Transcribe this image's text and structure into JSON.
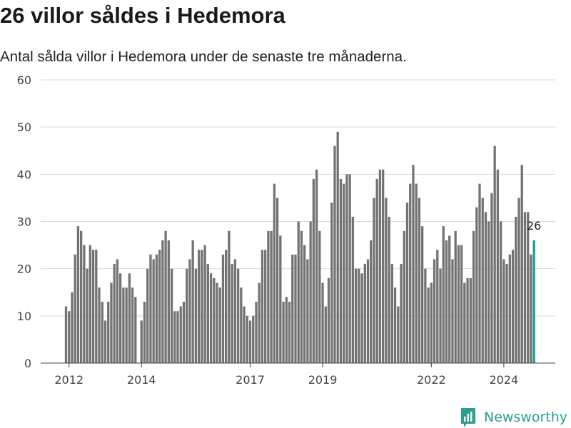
{
  "title": "26 villor såldes i Hedemora",
  "subtitle": "Antal sålda villor i Hedemora under de senaste tre månaderna.",
  "brand": {
    "name": "Newsworthy",
    "icon": "newsworthy-logo-icon"
  },
  "colors": {
    "bar": "#737373",
    "highlight": "#1a9e93",
    "grid": "#d9d9d9",
    "axis": "#444444",
    "brand": "#2a9d8f"
  },
  "chart_data": {
    "type": "bar",
    "title": "",
    "xlabel": "",
    "ylabel": "",
    "ylim": [
      0,
      60
    ],
    "yticks": [
      0,
      10,
      20,
      30,
      40,
      50,
      60
    ],
    "xticks": [
      {
        "label": "2012",
        "value": 2012.0
      },
      {
        "label": "2014",
        "value": 2014.0
      },
      {
        "label": "2017",
        "value": 2017.0
      },
      {
        "label": "2019",
        "value": 2019.0
      },
      {
        "label": "2022",
        "value": 2022.0
      },
      {
        "label": "2024",
        "value": 2024.0
      }
    ],
    "grid": true,
    "start": "2011-12",
    "bar_interval": "month",
    "highlight_last": true,
    "last_value_label": "26",
    "values": [
      12,
      11,
      15,
      23,
      29,
      28,
      25,
      20,
      25,
      24,
      24,
      16,
      13,
      9,
      13,
      17,
      21,
      22,
      19,
      16,
      16,
      19,
      16,
      14,
      0,
      9,
      13,
      20,
      23,
      22,
      23,
      24,
      26,
      28,
      26,
      20,
      11,
      11,
      12,
      13,
      20,
      22,
      26,
      20,
      24,
      24,
      25,
      21,
      19,
      18,
      17,
      16,
      23,
      24,
      28,
      21,
      22,
      20,
      16,
      12,
      10,
      9,
      10,
      13,
      17,
      24,
      24,
      28,
      28,
      38,
      35,
      27,
      13,
      14,
      13,
      23,
      23,
      30,
      28,
      25,
      22,
      30,
      39,
      41,
      28,
      17,
      12,
      18,
      34,
      46,
      49,
      39,
      38,
      40,
      40,
      31,
      20,
      20,
      19,
      21,
      22,
      26,
      35,
      39,
      41,
      41,
      35,
      31,
      21,
      16,
      12,
      21,
      28,
      34,
      38,
      42,
      38,
      35,
      29,
      20,
      16,
      17,
      22,
      24,
      20,
      29,
      26,
      27,
      22,
      28,
      25,
      25,
      17,
      18,
      18,
      28,
      33,
      38,
      35,
      32,
      30,
      36,
      46,
      41,
      30,
      22,
      21,
      23,
      24,
      31,
      35,
      42,
      32,
      32,
      23,
      26
    ]
  }
}
